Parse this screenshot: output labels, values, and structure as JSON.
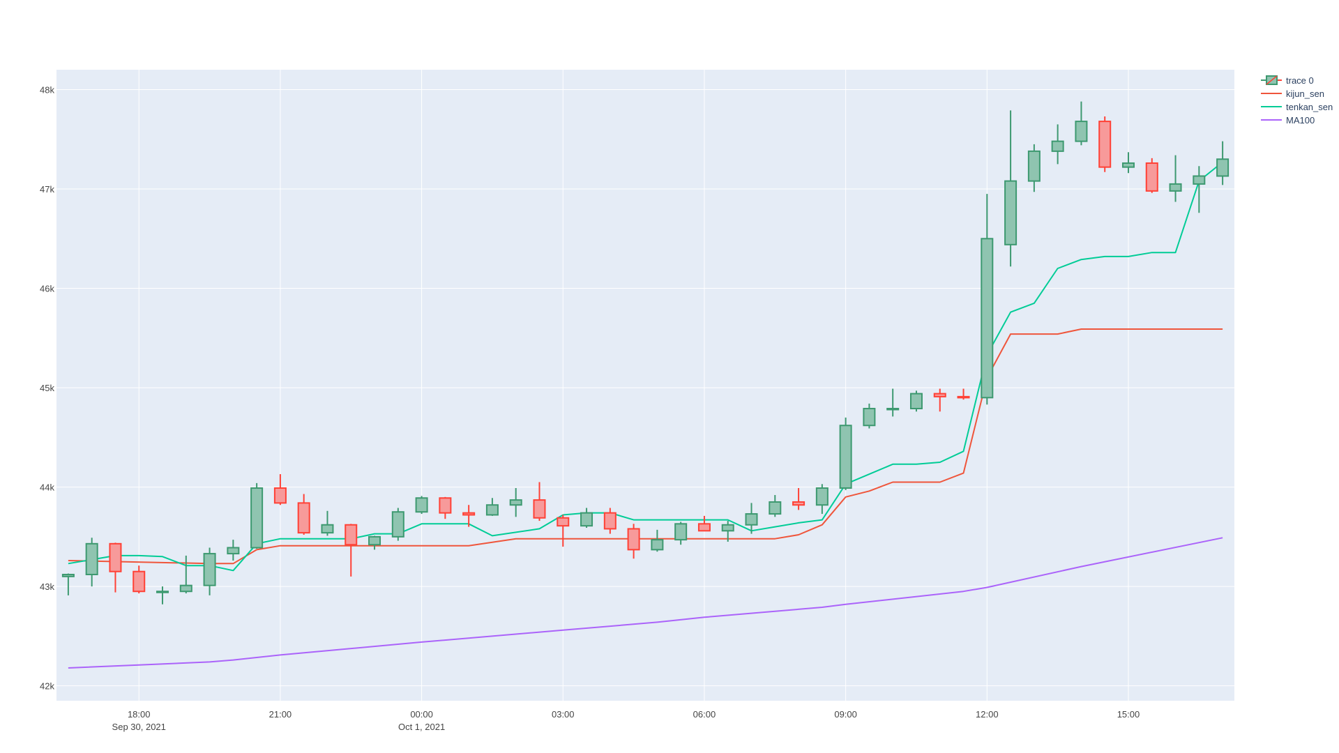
{
  "colors": {
    "plot_bg": "#e5ecf6",
    "grid": "#ffffff",
    "increasing": "#3d9970",
    "increasing_fill": "#8fc4b0",
    "decreasing": "#ff4136",
    "decreasing_fill": "#f79a9a",
    "kijun_sen": "#ef553b",
    "tenkan_sen": "#00cc96",
    "MA100": "#ab63fa"
  },
  "legend": [
    {
      "name": "trace 0",
      "icon": "candlestick-icon"
    },
    {
      "name": "kijun_sen",
      "color": "#ef553b"
    },
    {
      "name": "tenkan_sen",
      "color": "#00cc96"
    },
    {
      "name": "MA100",
      "color": "#ab63fa"
    }
  ],
  "chart_data": {
    "type": "candlestick",
    "title": "",
    "xlabel": "",
    "ylabel": "",
    "x_range": [
      "2021-09-30T16:15",
      "2021-10-01T17:15"
    ],
    "y_range": [
      41850,
      48200
    ],
    "grid": true,
    "legend_position": "top-right",
    "x_ticks": [
      {
        "t": "2021-09-30T18:00",
        "label": "18:00",
        "sub": "Sep 30, 2021"
      },
      {
        "t": "2021-09-30T21:00",
        "label": "21:00",
        "sub": ""
      },
      {
        "t": "2021-10-01T00:00",
        "label": "00:00",
        "sub": "Oct 1, 2021"
      },
      {
        "t": "2021-10-01T03:00",
        "label": "03:00",
        "sub": ""
      },
      {
        "t": "2021-10-01T06:00",
        "label": "06:00",
        "sub": ""
      },
      {
        "t": "2021-10-01T09:00",
        "label": "09:00",
        "sub": ""
      },
      {
        "t": "2021-10-01T12:00",
        "label": "12:00",
        "sub": ""
      },
      {
        "t": "2021-10-01T15:00",
        "label": "15:00",
        "sub": ""
      }
    ],
    "y_ticks": [
      {
        "v": 42000,
        "label": "42k"
      },
      {
        "v": 43000,
        "label": "43k"
      },
      {
        "v": 44000,
        "label": "44k"
      },
      {
        "v": 45000,
        "label": "45k"
      },
      {
        "v": 46000,
        "label": "46k"
      },
      {
        "v": 47000,
        "label": "47k"
      },
      {
        "v": 48000,
        "label": "48k"
      }
    ],
    "candles": {
      "name": "trace 0",
      "x": [
        "2021-09-30T16:30",
        "2021-09-30T17:00",
        "2021-09-30T17:30",
        "2021-09-30T18:00",
        "2021-09-30T18:30",
        "2021-09-30T19:00",
        "2021-09-30T19:30",
        "2021-09-30T20:00",
        "2021-09-30T20:30",
        "2021-09-30T21:00",
        "2021-09-30T21:30",
        "2021-09-30T22:00",
        "2021-09-30T22:30",
        "2021-09-30T23:00",
        "2021-09-30T23:30",
        "2021-10-01T00:00",
        "2021-10-01T00:30",
        "2021-10-01T01:00",
        "2021-10-01T01:30",
        "2021-10-01T02:00",
        "2021-10-01T02:30",
        "2021-10-01T03:00",
        "2021-10-01T03:30",
        "2021-10-01T04:00",
        "2021-10-01T04:30",
        "2021-10-01T05:00",
        "2021-10-01T05:30",
        "2021-10-01T06:00",
        "2021-10-01T06:30",
        "2021-10-01T07:00",
        "2021-10-01T07:30",
        "2021-10-01T08:00",
        "2021-10-01T08:30",
        "2021-10-01T09:00",
        "2021-10-01T09:30",
        "2021-10-01T10:00",
        "2021-10-01T10:30",
        "2021-10-01T11:00",
        "2021-10-01T11:30",
        "2021-10-01T12:00",
        "2021-10-01T12:30",
        "2021-10-01T13:00",
        "2021-10-01T13:30",
        "2021-10-01T14:00",
        "2021-10-01T14:30",
        "2021-10-01T15:00",
        "2021-10-01T15:30",
        "2021-10-01T16:00",
        "2021-10-01T16:30",
        "2021-10-01T17:00"
      ],
      "open": [
        43100,
        43120,
        43430,
        43150,
        42950,
        42950,
        43010,
        43330,
        43390,
        43990,
        43840,
        43540,
        43620,
        43420,
        43500,
        43750,
        43890,
        43740,
        43720,
        43820,
        43870,
        43690,
        43610,
        43740,
        43580,
        43370,
        43470,
        43630,
        43560,
        43620,
        43730,
        43850,
        43820,
        43990,
        44620,
        44790,
        44790,
        44940,
        44910,
        44900,
        46440,
        47080,
        47380,
        47480,
        47680,
        47220,
        47260,
        46980,
        47050,
        47130
      ],
      "high": [
        43130,
        43490,
        43440,
        43210,
        43000,
        43310,
        43390,
        43470,
        44040,
        44130,
        43930,
        43760,
        43630,
        43510,
        43790,
        43910,
        43900,
        43820,
        43890,
        43990,
        44050,
        43720,
        43790,
        43790,
        43630,
        43570,
        43650,
        43710,
        43660,
        43840,
        43920,
        43990,
        44030,
        44700,
        44840,
        44990,
        44970,
        44990,
        44990,
        46950,
        47790,
        47450,
        47650,
        47880,
        47730,
        47370,
        47310,
        47340,
        47230,
        47480
      ],
      "low": [
        42910,
        43000,
        42940,
        42930,
        42820,
        42930,
        42910,
        43260,
        43380,
        43820,
        43520,
        43510,
        43100,
        43370,
        43460,
        43730,
        43680,
        43600,
        43710,
        43700,
        43660,
        43400,
        43590,
        43530,
        43280,
        43350,
        43420,
        43560,
        43450,
        43530,
        43700,
        43770,
        43730,
        43970,
        44590,
        44710,
        44760,
        44760,
        44880,
        44830,
        46220,
        46970,
        47250,
        47440,
        47170,
        47160,
        46960,
        46870,
        46760,
        47040
      ],
      "close": [
        43120,
        43430,
        43150,
        42950,
        42950,
        43010,
        43330,
        43390,
        43990,
        43840,
        43540,
        43620,
        43420,
        43500,
        43750,
        43890,
        43740,
        43720,
        43820,
        43870,
        43690,
        43610,
        43740,
        43580,
        43370,
        43470,
        43630,
        43560,
        43620,
        43730,
        43850,
        43820,
        43990,
        44620,
        44790,
        44790,
        44940,
        44910,
        44900,
        46500,
        47080,
        47380,
        47480,
        47680,
        47220,
        47260,
        46980,
        47050,
        47130,
        47300
      ]
    },
    "series": [
      {
        "name": "kijun_sen",
        "x": [
          "2021-09-30T16:30",
          "2021-09-30T19:30",
          "2021-09-30T20:00",
          "2021-09-30T20:30",
          "2021-09-30T21:00",
          "2021-10-01T01:00",
          "2021-10-01T02:00",
          "2021-10-01T07:30",
          "2021-10-01T08:00",
          "2021-10-01T08:30",
          "2021-10-01T09:00",
          "2021-10-01T09:30",
          "2021-10-01T10:00",
          "2021-10-01T10:30",
          "2021-10-01T11:00",
          "2021-10-01T11:30",
          "2021-10-01T12:00",
          "2021-10-01T12:30",
          "2021-10-01T13:30",
          "2021-10-01T14:00",
          "2021-10-01T17:00"
        ],
        "y": [
          43260,
          43230,
          43230,
          43370,
          43410,
          43410,
          43480,
          43480,
          43520,
          43620,
          43900,
          43960,
          44050,
          44050,
          44050,
          44140,
          45100,
          45540,
          45540,
          45590,
          45590
        ]
      },
      {
        "name": "tenkan_sen",
        "x": [
          "2021-09-30T16:30",
          "2021-09-30T17:00",
          "2021-09-30T17:30",
          "2021-09-30T18:00",
          "2021-09-30T18:30",
          "2021-09-30T19:00",
          "2021-09-30T19:30",
          "2021-09-30T20:00",
          "2021-09-30T20:30",
          "2021-09-30T21:00",
          "2021-09-30T22:30",
          "2021-09-30T23:00",
          "2021-09-30T23:30",
          "2021-10-01T00:00",
          "2021-10-01T01:00",
          "2021-10-01T01:30",
          "2021-10-01T02:30",
          "2021-10-01T03:00",
          "2021-10-01T03:30",
          "2021-10-01T04:00",
          "2021-10-01T04:30",
          "2021-10-01T06:30",
          "2021-10-01T07:00",
          "2021-10-01T07:30",
          "2021-10-01T08:00",
          "2021-10-01T08:30",
          "2021-10-01T09:00",
          "2021-10-01T09:30",
          "2021-10-01T10:00",
          "2021-10-01T10:30",
          "2021-10-01T11:00",
          "2021-10-01T11:30",
          "2021-10-01T12:00",
          "2021-10-01T12:30",
          "2021-10-01T13:00",
          "2021-10-01T13:30",
          "2021-10-01T14:00",
          "2021-10-01T14:30",
          "2021-10-01T15:00",
          "2021-10-01T15:30",
          "2021-10-01T16:00",
          "2021-10-01T16:30",
          "2021-10-01T17:00"
        ],
        "y": [
          43230,
          43270,
          43310,
          43310,
          43300,
          43210,
          43210,
          43160,
          43430,
          43480,
          43480,
          43530,
          43530,
          43630,
          43630,
          43510,
          43580,
          43720,
          43740,
          43740,
          43670,
          43670,
          43560,
          43600,
          43640,
          43670,
          44030,
          44130,
          44230,
          44230,
          44250,
          44360,
          45330,
          45760,
          45850,
          46200,
          46290,
          46320,
          46320,
          46360,
          46360,
          47080,
          47270
        ]
      },
      {
        "name": "MA100",
        "x": [
          "2021-09-30T16:30",
          "2021-09-30T18:00",
          "2021-09-30T19:30",
          "2021-09-30T20:00",
          "2021-09-30T21:00",
          "2021-10-01T00:00",
          "2021-10-01T03:00",
          "2021-10-01T05:00",
          "2021-10-01T06:00",
          "2021-10-01T08:30",
          "2021-10-01T09:00",
          "2021-10-01T11:30",
          "2021-10-01T12:00",
          "2021-10-01T14:00",
          "2021-10-01T17:00"
        ],
        "y": [
          42180,
          42210,
          42240,
          42260,
          42310,
          42440,
          42560,
          42640,
          42690,
          42790,
          42820,
          42950,
          42990,
          43200,
          43490
        ]
      }
    ]
  }
}
